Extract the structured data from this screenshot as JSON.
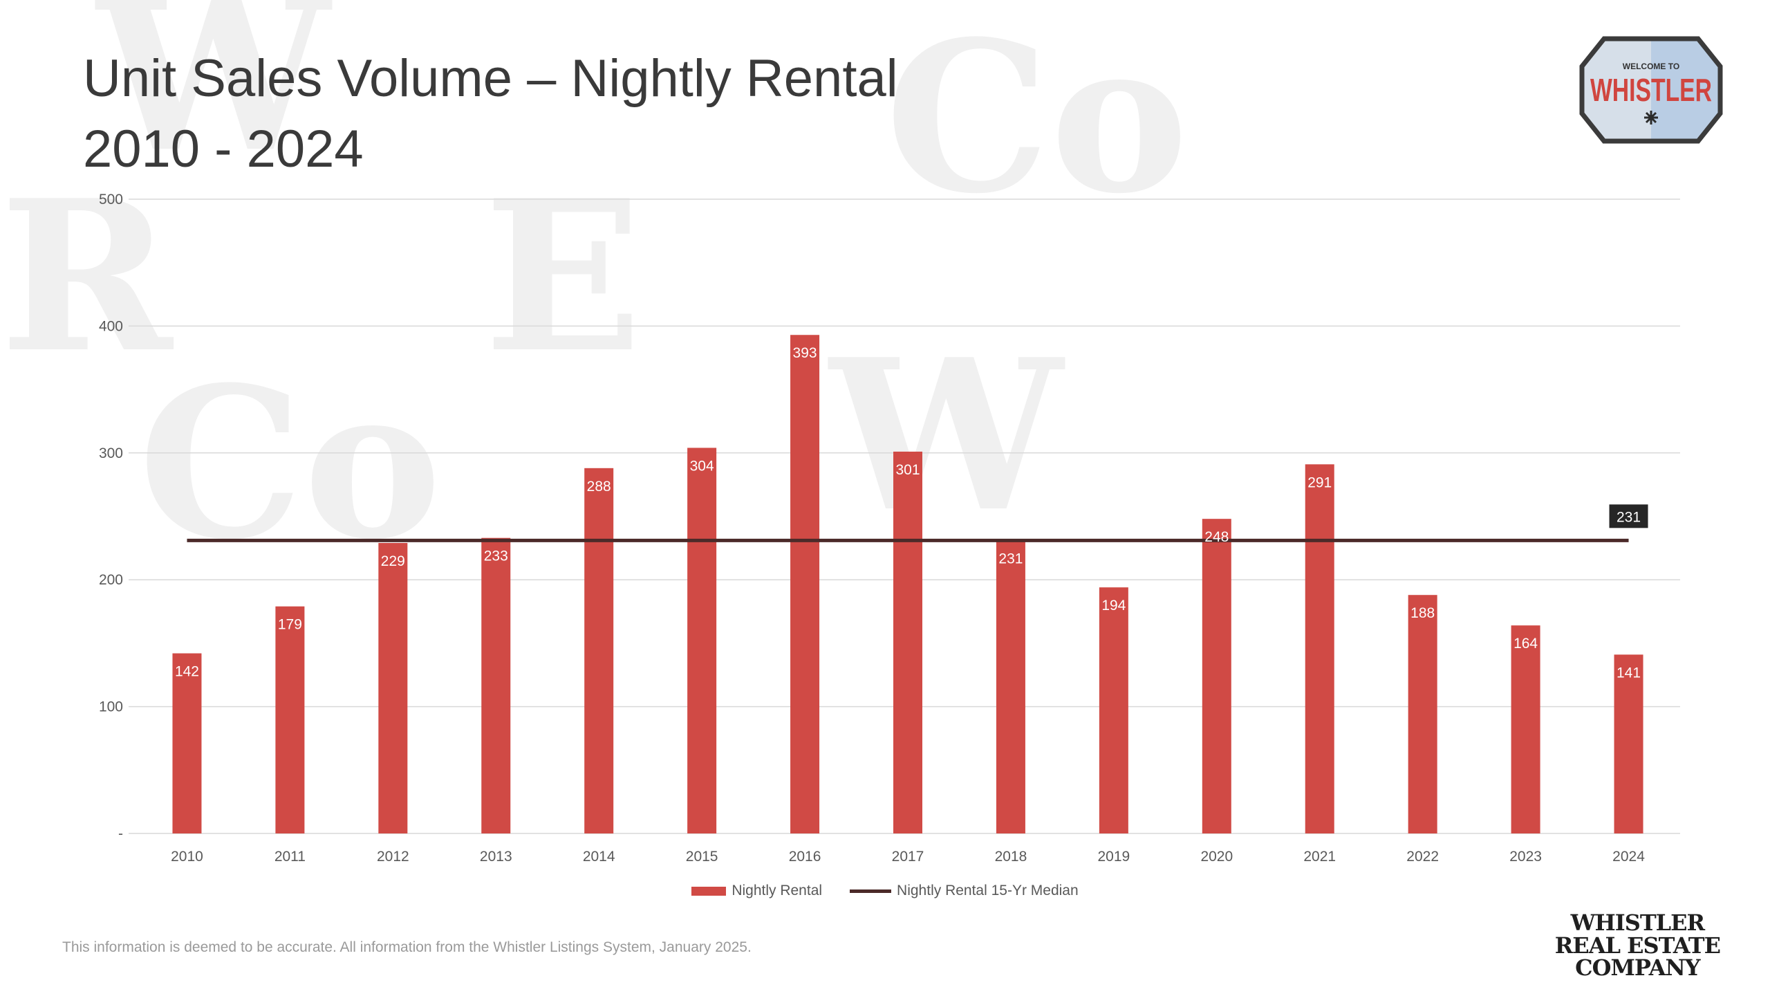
{
  "title": {
    "line1": "Unit Sales Volume – Nightly Rental",
    "line2": "2010 - 2024"
  },
  "logo": {
    "small_text": "WELCOME TO",
    "big_text": "WHISTLER",
    "border_color": "#3b3b3b",
    "left_color": "#d6dfe9",
    "right_color": "#b9cde4",
    "text_color": "#d0453f"
  },
  "watermark": {
    "letters": [
      "W",
      "Co",
      "R",
      "E",
      "W",
      "Co"
    ],
    "color": "#efefef"
  },
  "footnote": "This information is deemed to be accurate. All information from the Whistler Listings System, January 2025.",
  "company_logo": {
    "lines": [
      "WHISTLER",
      "REAL ESTATE",
      "COMPANY"
    ]
  },
  "colors": {
    "bar": "#d04a45",
    "median_line": "#4b2a29",
    "median_label_bg": "#262626",
    "grid": "#d9d9d9"
  },
  "chart_data": {
    "type": "bar",
    "categories": [
      "2010",
      "2011",
      "2012",
      "2013",
      "2014",
      "2015",
      "2016",
      "2017",
      "2018",
      "2019",
      "2020",
      "2021",
      "2022",
      "2023",
      "2024"
    ],
    "series": [
      {
        "name": "Nightly Rental",
        "type": "bar",
        "values": [
          142,
          179,
          229,
          233,
          288,
          304,
          393,
          301,
          231,
          194,
          248,
          291,
          188,
          164,
          141
        ],
        "color": "#d04a45"
      },
      {
        "name": "Nightly Rental 15-Yr Median",
        "type": "line",
        "values": [
          231,
          231,
          231,
          231,
          231,
          231,
          231,
          231,
          231,
          231,
          231,
          231,
          231,
          231,
          231
        ],
        "color": "#4b2a29",
        "label": "231"
      }
    ],
    "ylim": [
      0,
      500
    ],
    "yticks": [
      0,
      100,
      200,
      300,
      400,
      500
    ],
    "ytick_labels": [
      "-",
      "100",
      "200",
      "300",
      "400",
      "500"
    ],
    "grid": true,
    "legend_position": "bottom"
  }
}
